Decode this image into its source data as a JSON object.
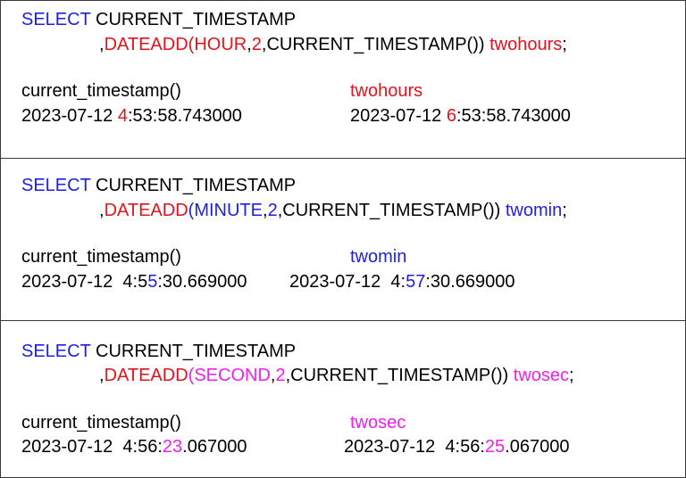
{
  "colors": {
    "keyword": "#1f1fe0",
    "hour": "#e0141e",
    "minute": "#1f1fe0",
    "second": "#f21ef2"
  },
  "panels": [
    {
      "select_kw": "SELECT",
      "select_rest": " CURRENT_TIMESTAMP",
      "comma": ",",
      "func": "DATEADD",
      "paren_open": "(",
      "unit": "HOUR",
      "c1": ",",
      "num": "2",
      "rest": ",CURRENT_TIMESTAMP()) ",
      "alias": "twohours",
      "semi": ";",
      "col1_header": "current_timestamp()",
      "col2_header": "twohours",
      "v1_pre": "2023-07-12 ",
      "v1_hi": "4",
      "v1_post": ":53:58.743000",
      "v2_pre": "2023-07-12 ",
      "v2_hi": "6",
      "v2_post": ":53:58.743000"
    },
    {
      "select_kw": "SELECT",
      "select_rest": " CURRENT_TIMESTAMP",
      "comma": ",",
      "func": "DATEADD",
      "paren_open": "(",
      "unit": "MINUTE",
      "c1": ",",
      "num": "2",
      "rest": ",CURRENT_TIMESTAMP()) ",
      "alias": "twomin",
      "semi": ";",
      "col1_header": "current_timestamp()",
      "col2_header": "twomin",
      "v1_pre": "2023-07-12  4:5",
      "v1_hi": "5",
      "v1_post": ":30.669000",
      "v2_pre": "2023-07-12  4:",
      "v2_hi": "57",
      "v2_post": ":30.669000"
    },
    {
      "select_kw": "SELECT",
      "select_rest": " CURRENT_TIMESTAMP",
      "comma": ",",
      "func": "DATEADD",
      "paren_open": "(",
      "unit": "SECOND",
      "c1": ",",
      "num": "2",
      "rest": ",CURRENT_TIMESTAMP()) ",
      "alias": "twosec",
      "semi": ";",
      "col1_header": "current_timestamp()",
      "col2_header": "twosec",
      "v1_pre": "2023-07-12  4:56:",
      "v1_hi": "23",
      "v1_post": ".067000",
      "v2_pre": "2023-07-12  4:56:",
      "v2_hi": "25",
      "v2_post": ".067000"
    }
  ]
}
